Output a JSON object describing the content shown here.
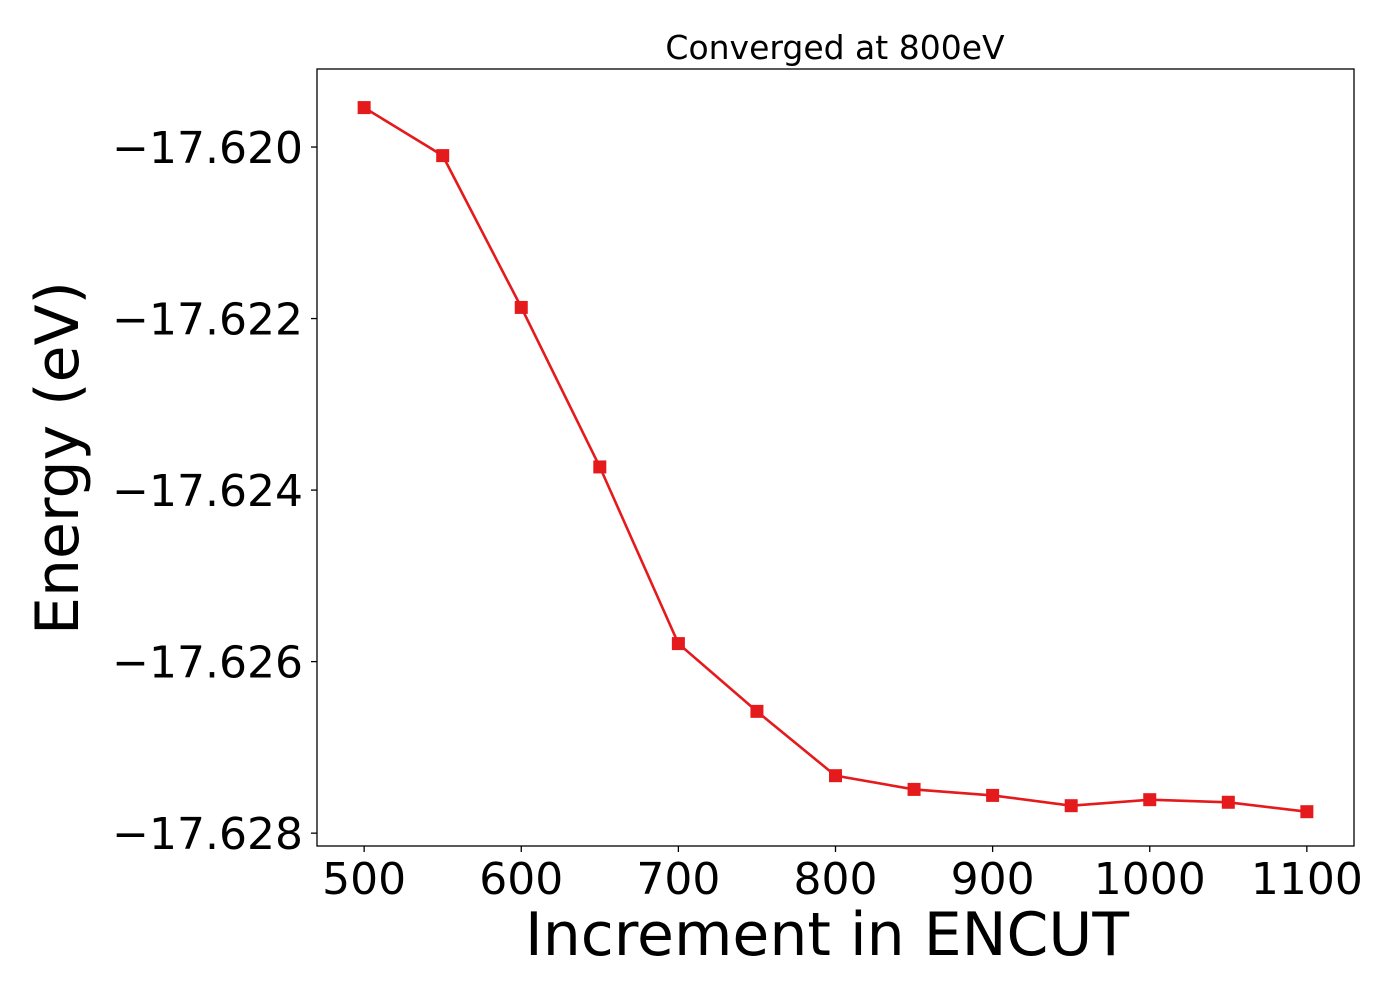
{
  "chart_data": {
    "type": "line",
    "title": "Converged at 800eV",
    "xlabel": "Increment in ENCUT",
    "ylabel": "Energy (eV)",
    "x_ticks": [
      "500",
      "600",
      "700",
      "800",
      "900",
      "1000",
      "1100"
    ],
    "y_ticks": [
      "−17.620",
      "−17.622",
      "−17.624",
      "−17.626",
      "−17.628"
    ],
    "xlim": [
      470,
      1130
    ],
    "ylim": [
      -17.62815,
      -17.61909
    ],
    "grid": false,
    "legend": "none",
    "series": [
      {
        "color": "#e41a1c",
        "marker": "square",
        "x": [
          500,
          550,
          600,
          650,
          700,
          750,
          800,
          850,
          900,
          950,
          1000,
          1050,
          1100
        ],
        "y": [
          -17.61954,
          -17.6201,
          -17.62187,
          -17.62373,
          -17.62579,
          -17.62658,
          -17.62733,
          -17.62749,
          -17.62756,
          -17.62768,
          -17.62761,
          -17.62764,
          -17.62775
        ]
      }
    ]
  }
}
